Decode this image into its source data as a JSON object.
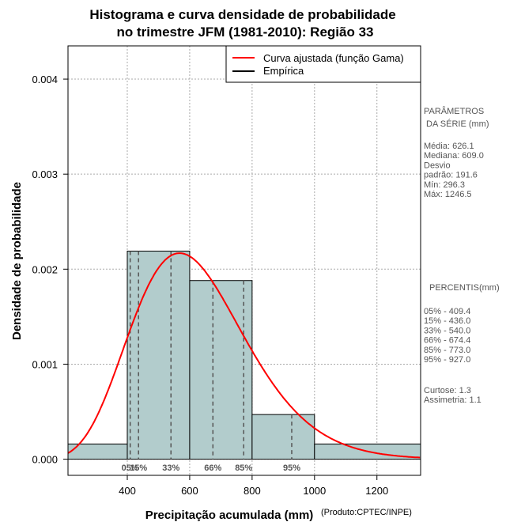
{
  "chart_data": {
    "type": "histogram",
    "title_line1": "Histograma e curva densidade de probabilidade",
    "title_line2": "no trimestre JFM (1981-2010): Região 33",
    "xlabel": "Precipitação acumulada (mm)",
    "ylabel": "Densidade de probabilidade",
    "credit": "(Produto:CPTEC/INPE)",
    "xlim": [
      210,
      1340
    ],
    "ylim": [
      -0.00017,
      0.00435
    ],
    "x_ticks": [
      400,
      600,
      800,
      1000,
      1200
    ],
    "y_ticks": [
      0.0,
      0.001,
      0.002,
      0.003,
      0.004
    ],
    "y_tick_labels": [
      "0.000",
      "0.001",
      "0.002",
      "0.003",
      "0.004"
    ],
    "bins": [
      {
        "start": 200,
        "end": 400,
        "density": 0.00016
      },
      {
        "start": 400,
        "end": 600,
        "density": 0.00219
      },
      {
        "start": 600,
        "end": 800,
        "density": 0.00188
      },
      {
        "start": 800,
        "end": 1000,
        "density": 0.00047
      },
      {
        "start": 1000,
        "end": 1400,
        "density": 0.00016
      }
    ],
    "percentile_lines": [
      {
        "label": "05%",
        "value": 409.4
      },
      {
        "label": "15%",
        "value": 436.0
      },
      {
        "label": "33%",
        "value": 540.0
      },
      {
        "label": "66%",
        "value": 674.4
      },
      {
        "label": "85%",
        "value": 773.0
      },
      {
        "label": "95%",
        "value": 927.0
      }
    ],
    "gamma_fit": {
      "mean": 626.1,
      "sd": 191.6
    },
    "legend": [
      {
        "label": "Curva ajustada (função Gama)",
        "color": "#ff0000"
      },
      {
        "label": "Empírica",
        "color": "#000000"
      }
    ],
    "colors": {
      "bar_fill": "#b2cccc",
      "curve": "#ff0000",
      "grid": "#aaaaaa",
      "percentile": "#555555"
    }
  },
  "side_panel": {
    "params_title_1": "PARÂMETROS",
    "params_title_2": " DA SÉRIE (mm)",
    "params": [
      "Média:  626.1",
      "Mediana:  609.0",
      "Desvio",
      "padrão:  191.6",
      "Mín:  296.3",
      "Máx:  1246.5"
    ],
    "percentis_title": "PERCENTIS(mm)",
    "percentis": [
      "05% -  409.4",
      "15% -  436.0",
      "33% -  540.0",
      "66% -  674.4",
      "85% -  773.0",
      "95% -  927.0"
    ],
    "stats": [
      "Curtose:  1.3",
      "Assimetria:  1.1"
    ]
  }
}
